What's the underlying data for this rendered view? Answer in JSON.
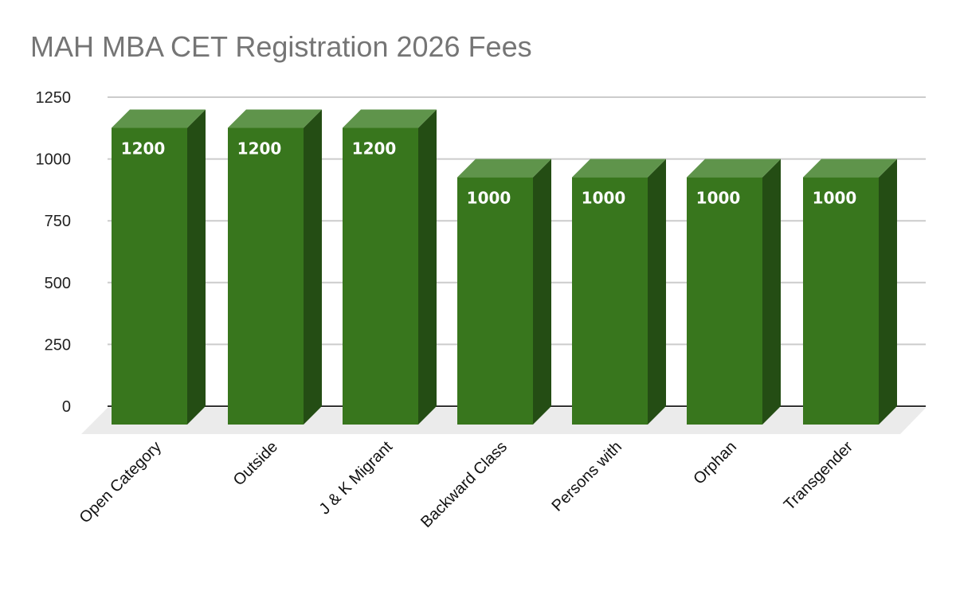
{
  "chart_data": {
    "type": "bar",
    "style": "3d-column",
    "title": "MAH MBA CET Registration 2026 Fees",
    "xlabel": "",
    "ylabel": "",
    "categories": [
      "Open Category",
      "Outside",
      "J & K Migrant",
      "Backward Class",
      "Persons with",
      "Orphan",
      "Transgender"
    ],
    "values": [
      1200,
      1200,
      1200,
      1000,
      1000,
      1000,
      1000
    ],
    "data_labels": [
      "1200",
      "1200",
      "1200",
      "1000",
      "1000",
      "1000",
      "1000"
    ],
    "yticks": [
      "0",
      "250",
      "500",
      "750",
      "1000",
      "1250"
    ],
    "ylim": [
      0,
      1250
    ],
    "grid": true,
    "legend": null,
    "colors": {
      "bar_front": "#38761d",
      "bar_top": "#5f944b",
      "bar_side": "#244d14",
      "floor": "#ebebeb",
      "gridline": "#cccccc",
      "baseline": "#333333",
      "title": "#757575"
    }
  }
}
